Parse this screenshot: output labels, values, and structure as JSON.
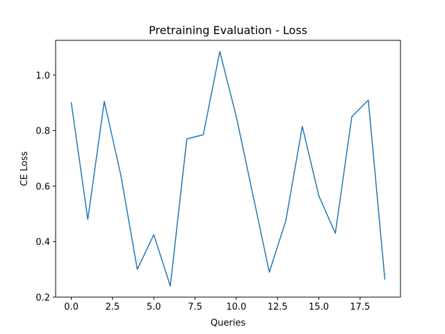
{
  "chart_data": {
    "type": "line",
    "title": "Pretraining Evaluation - Loss",
    "xlabel": "Queries",
    "ylabel": "CE Loss",
    "x": [
      0,
      1,
      2,
      3,
      4,
      5,
      6,
      7,
      8,
      9,
      10,
      11,
      12,
      13,
      14,
      15,
      16,
      17,
      18,
      19
    ],
    "series": [
      {
        "values": [
          0.9,
          0.48,
          0.905,
          0.64,
          0.3,
          0.425,
          0.24,
          0.77,
          0.785,
          1.085,
          0.85,
          0.57,
          0.29,
          0.475,
          0.815,
          0.565,
          0.43,
          0.85,
          0.91,
          0.265
        ],
        "color": "#1f77b4"
      }
    ],
    "xlim": [
      -0.95,
      19.95
    ],
    "ylim": [
      0.2,
      1.125
    ],
    "xticks": [
      0.0,
      2.5,
      5.0,
      7.5,
      10.0,
      12.5,
      15.0,
      17.5
    ],
    "xtick_labels": [
      "0.0",
      "2.5",
      "5.0",
      "7.5",
      "10.0",
      "12.5",
      "15.0",
      "17.5"
    ],
    "yticks": [
      0.2,
      0.4,
      0.6,
      0.8,
      1.0
    ],
    "ytick_labels": [
      "0.2",
      "0.4",
      "0.6",
      "0.8",
      "1.0"
    ],
    "grid": false,
    "legend": false
  }
}
